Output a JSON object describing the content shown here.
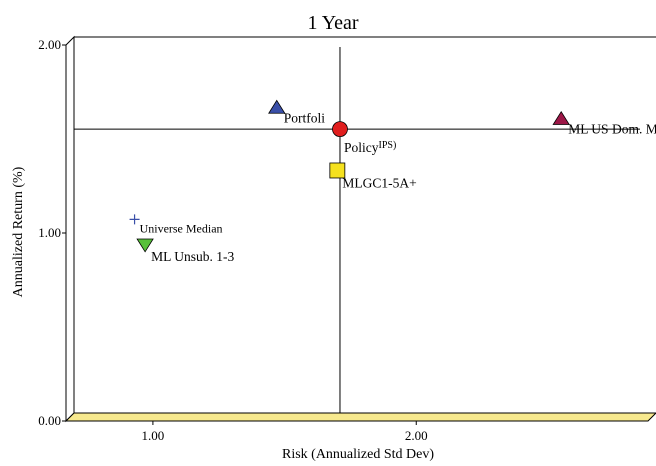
{
  "chart_data": {
    "type": "scatter",
    "title": "1 Year",
    "xlabel": "Risk (Annualized Std Dev)",
    "ylabel": "Annualized Return (%)",
    "xlim": [
      0.67,
      2.88
    ],
    "ylim": [
      0.0,
      2.0
    ],
    "x_ticks": [
      {
        "value": 1.0,
        "label": "1.00"
      },
      {
        "value": 2.0,
        "label": "2.00"
      }
    ],
    "y_ticks": [
      {
        "value": 0.0,
        "label": "0.00"
      },
      {
        "value": 1.0,
        "label": "1.00"
      },
      {
        "value": 2.0,
        "label": "2.00"
      }
    ],
    "reference_lines": {
      "x": 1.68,
      "y": 1.51
    },
    "grid": false,
    "points": [
      {
        "label": "Portfoli",
        "sup": "",
        "x": 1.44,
        "y": 1.62,
        "marker": "triangle-up",
        "color": "#3a4fa8"
      },
      {
        "label": "Policy",
        "sup": "IPS)",
        "x": 1.68,
        "y": 1.51,
        "marker": "circle",
        "color": "#e01e1e"
      },
      {
        "label": "MLGC1-5A+",
        "sup": "",
        "x": 1.67,
        "y": 1.29,
        "marker": "square",
        "color": "#f5e11e"
      },
      {
        "label": "ML US Dom. M",
        "sup": "",
        "x": 2.52,
        "y": 1.56,
        "marker": "triangle-up",
        "color": "#9c1747"
      },
      {
        "label": "Universe Median",
        "sup": "",
        "x": 0.9,
        "y": 1.03,
        "marker": "plus",
        "color": "#3a4fa8"
      },
      {
        "label": "ML Unsub. 1-3",
        "sup": "",
        "x": 0.94,
        "y": 0.9,
        "marker": "triangle-down",
        "color": "#57c13a"
      }
    ]
  }
}
